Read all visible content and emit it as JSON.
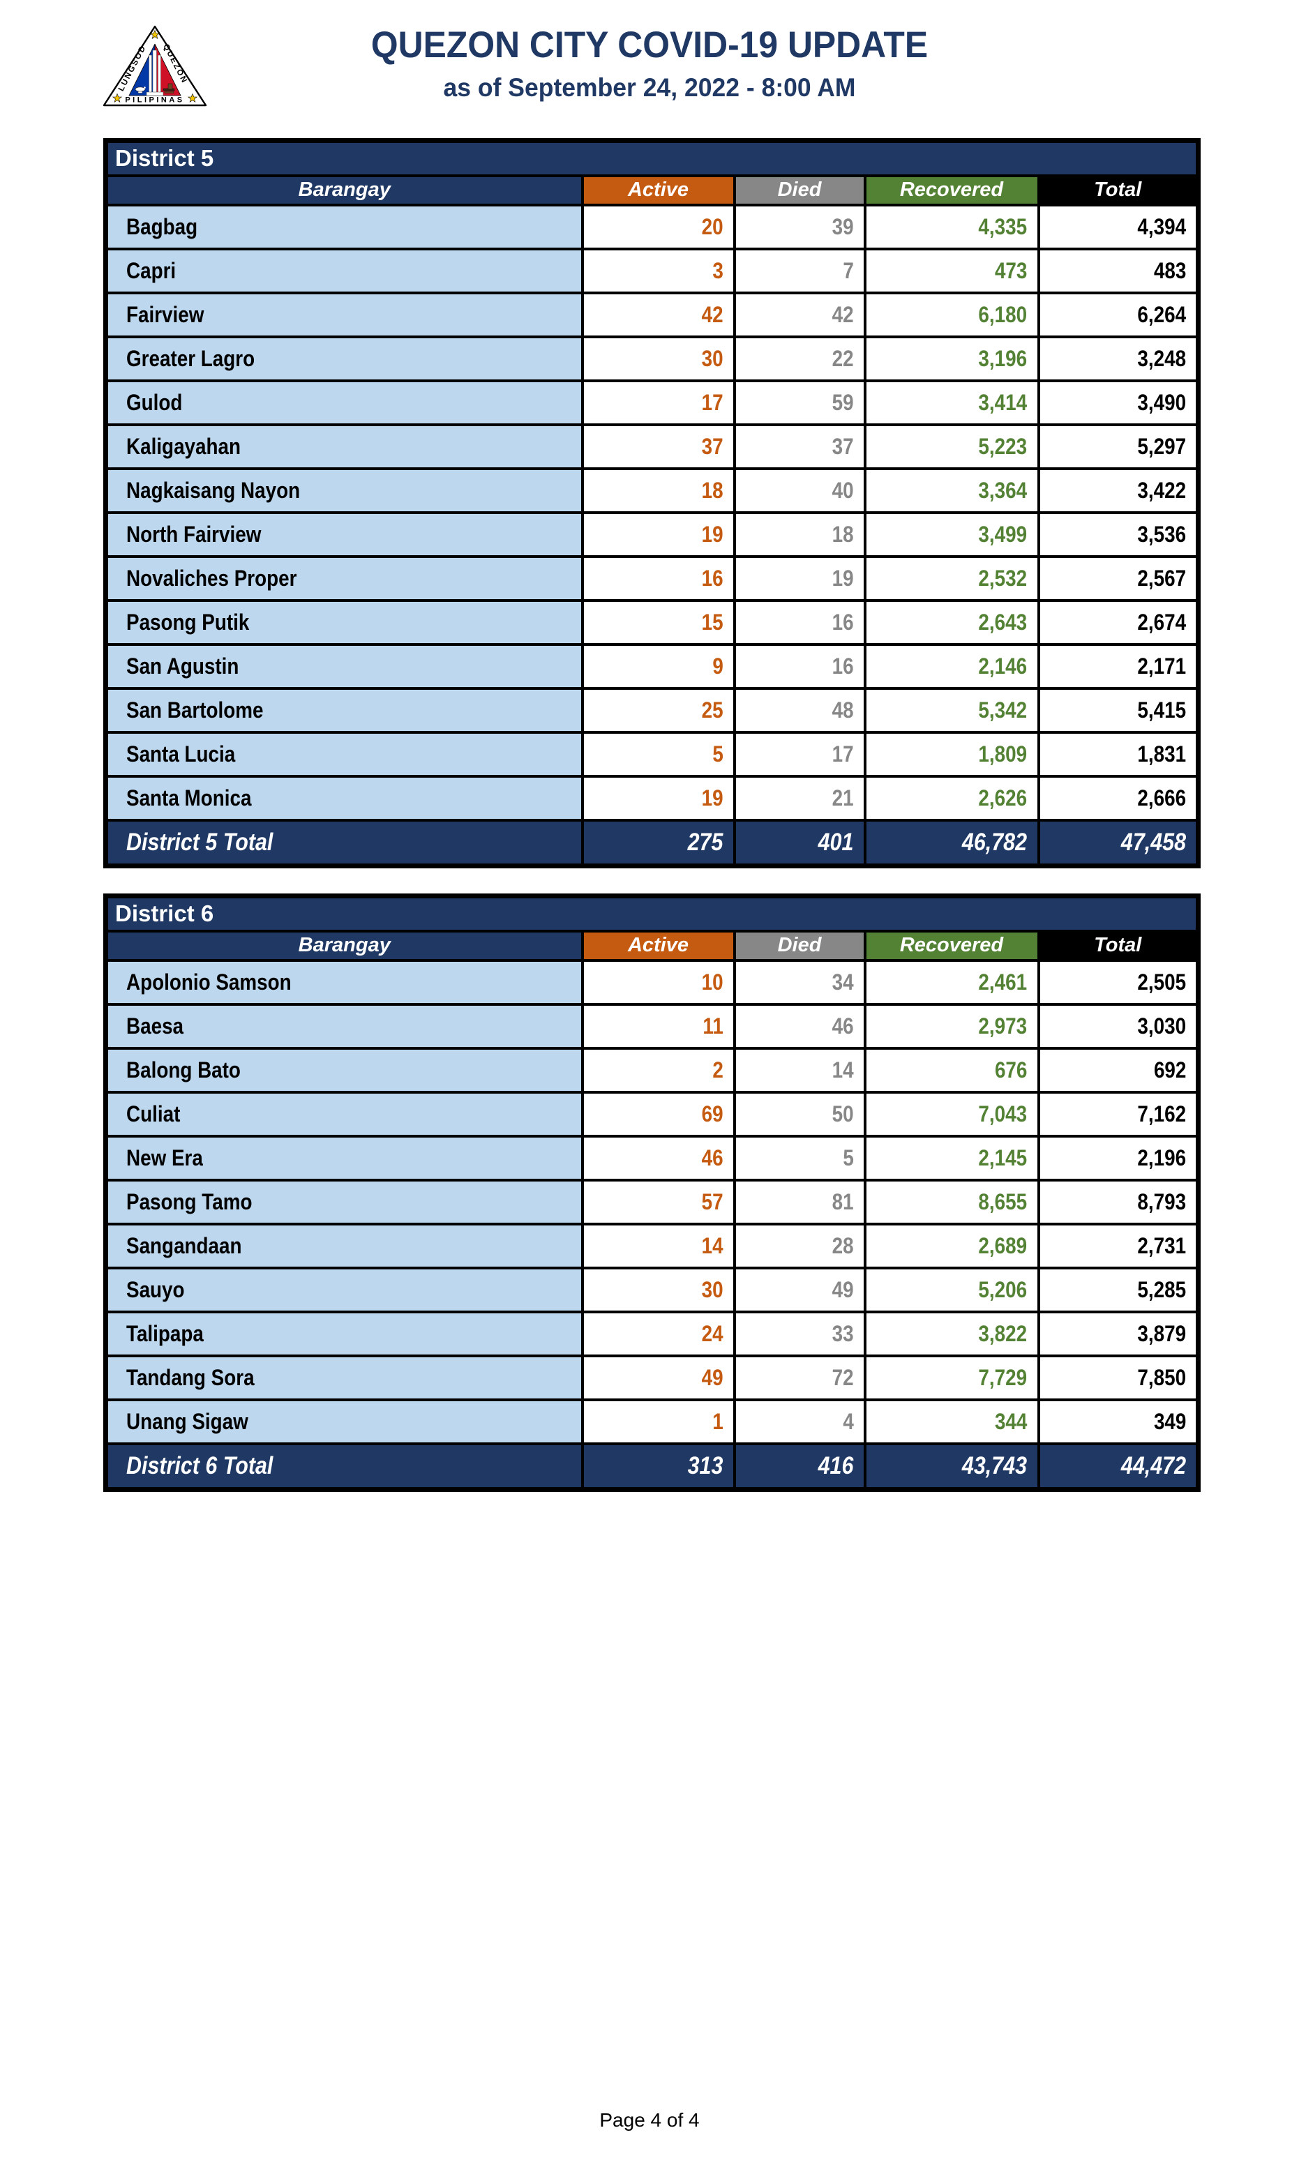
{
  "header": {
    "title": "QUEZON CITY COVID-19 UPDATE",
    "subtitle": "as of September 24, 2022 - 8:00 AM",
    "seal": {
      "arc_left": "LUNGSOD",
      "arc_right": "QUEZON",
      "bottom": "PILIPINAS"
    }
  },
  "columns": {
    "barangay": "Barangay",
    "active": "Active",
    "died": "Died",
    "recovered": "Recovered",
    "total": "Total"
  },
  "colors": {
    "navy": "#1F3864",
    "orange": "#C55A11",
    "gray": "#878787",
    "green": "#548235",
    "row_blue": "#BDD7EE",
    "ink": "#000000"
  },
  "tables": [
    {
      "district": "District 5",
      "rows": [
        {
          "barangay": "Bagbag",
          "active": "20",
          "died": "39",
          "recovered": "4,335",
          "total": "4,394"
        },
        {
          "barangay": "Capri",
          "active": "3",
          "died": "7",
          "recovered": "473",
          "total": "483"
        },
        {
          "barangay": "Fairview",
          "active": "42",
          "died": "42",
          "recovered": "6,180",
          "total": "6,264"
        },
        {
          "barangay": "Greater Lagro",
          "active": "30",
          "died": "22",
          "recovered": "3,196",
          "total": "3,248"
        },
        {
          "barangay": "Gulod",
          "active": "17",
          "died": "59",
          "recovered": "3,414",
          "total": "3,490"
        },
        {
          "barangay": "Kaligayahan",
          "active": "37",
          "died": "37",
          "recovered": "5,223",
          "total": "5,297"
        },
        {
          "barangay": "Nagkaisang Nayon",
          "active": "18",
          "died": "40",
          "recovered": "3,364",
          "total": "3,422"
        },
        {
          "barangay": "North Fairview",
          "active": "19",
          "died": "18",
          "recovered": "3,499",
          "total": "3,536"
        },
        {
          "barangay": "Novaliches Proper",
          "active": "16",
          "died": "19",
          "recovered": "2,532",
          "total": "2,567"
        },
        {
          "barangay": "Pasong Putik",
          "active": "15",
          "died": "16",
          "recovered": "2,643",
          "total": "2,674"
        },
        {
          "barangay": "San Agustin",
          "active": "9",
          "died": "16",
          "recovered": "2,146",
          "total": "2,171"
        },
        {
          "barangay": "San Bartolome",
          "active": "25",
          "died": "48",
          "recovered": "5,342",
          "total": "5,415"
        },
        {
          "barangay": "Santa Lucia",
          "active": "5",
          "died": "17",
          "recovered": "1,809",
          "total": "1,831"
        },
        {
          "barangay": "Santa Monica",
          "active": "19",
          "died": "21",
          "recovered": "2,626",
          "total": "2,666"
        }
      ],
      "total_row": {
        "label": "District 5 Total",
        "active": "275",
        "died": "401",
        "recovered": "46,782",
        "total": "47,458"
      }
    },
    {
      "district": "District 6",
      "rows": [
        {
          "barangay": "Apolonio Samson",
          "active": "10",
          "died": "34",
          "recovered": "2,461",
          "total": "2,505"
        },
        {
          "barangay": "Baesa",
          "active": "11",
          "died": "46",
          "recovered": "2,973",
          "total": "3,030"
        },
        {
          "barangay": "Balong Bato",
          "active": "2",
          "died": "14",
          "recovered": "676",
          "total": "692"
        },
        {
          "barangay": "Culiat",
          "active": "69",
          "died": "50",
          "recovered": "7,043",
          "total": "7,162"
        },
        {
          "barangay": "New Era",
          "active": "46",
          "died": "5",
          "recovered": "2,145",
          "total": "2,196"
        },
        {
          "barangay": "Pasong Tamo",
          "active": "57",
          "died": "81",
          "recovered": "8,655",
          "total": "8,793"
        },
        {
          "barangay": "Sangandaan",
          "active": "14",
          "died": "28",
          "recovered": "2,689",
          "total": "2,731"
        },
        {
          "barangay": "Sauyo",
          "active": "30",
          "died": "49",
          "recovered": "5,206",
          "total": "5,285"
        },
        {
          "barangay": "Talipapa",
          "active": "24",
          "died": "33",
          "recovered": "3,822",
          "total": "3,879"
        },
        {
          "barangay": "Tandang Sora",
          "active": "49",
          "died": "72",
          "recovered": "7,729",
          "total": "7,850"
        },
        {
          "barangay": "Unang Sigaw",
          "active": "1",
          "died": "4",
          "recovered": "344",
          "total": "349"
        }
      ],
      "total_row": {
        "label": "District 6 Total",
        "active": "313",
        "died": "416",
        "recovered": "43,743",
        "total": "44,472"
      }
    }
  ],
  "footer": {
    "page_label": "Page 4 of 4"
  }
}
